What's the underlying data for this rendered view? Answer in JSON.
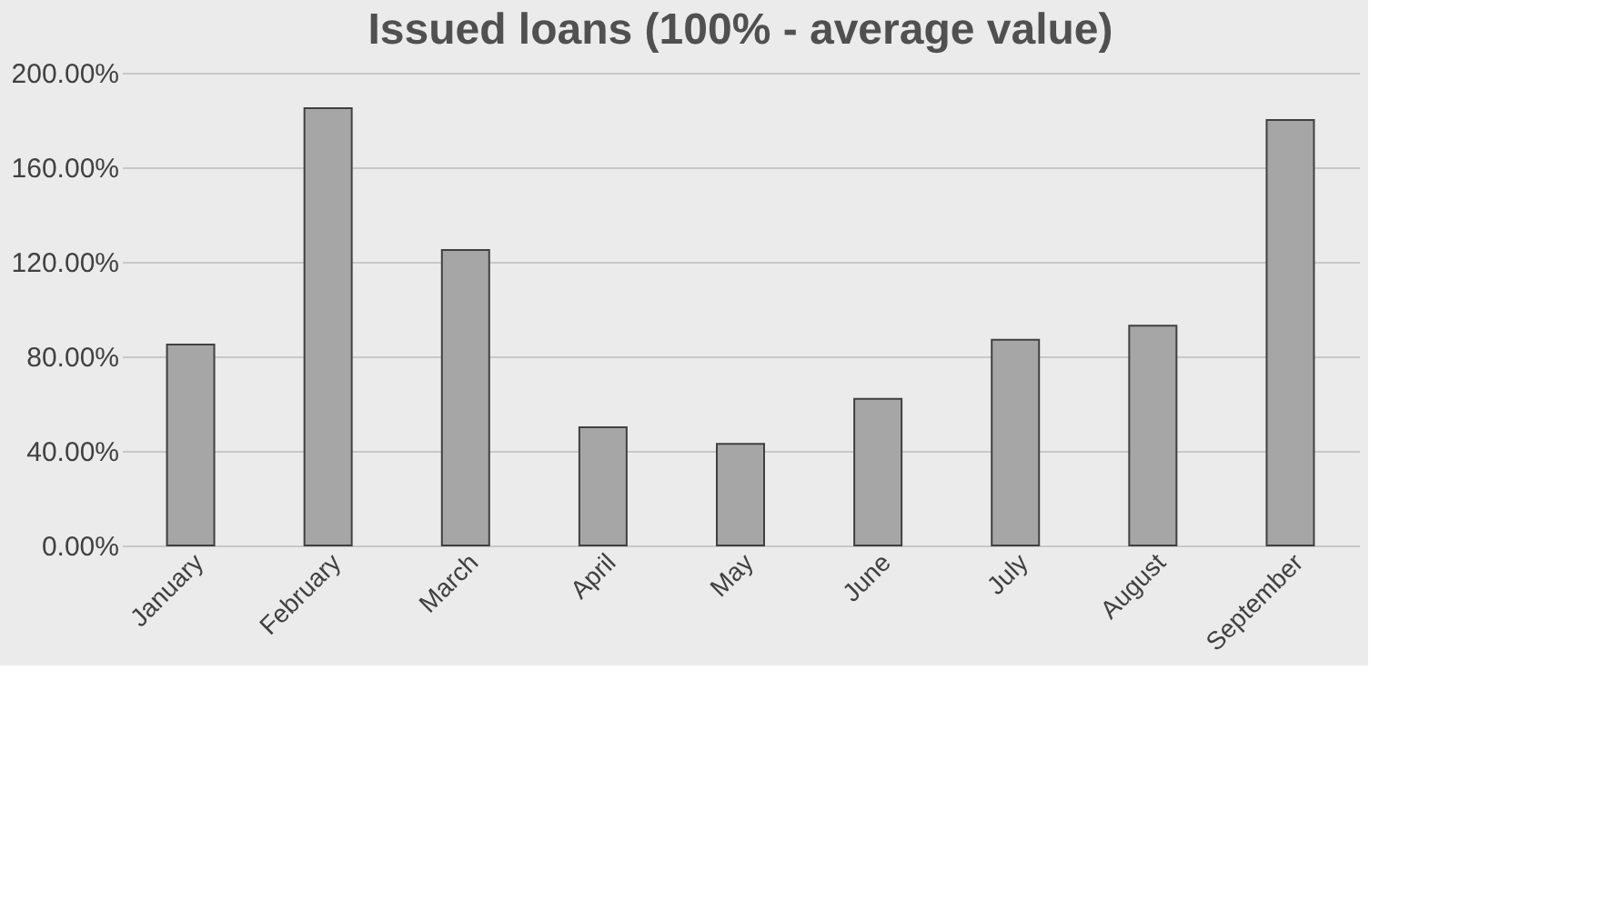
{
  "chart_data": {
    "type": "bar",
    "title": "Issued loans (100% - average value)",
    "categories": [
      "January",
      "February",
      "March",
      "April",
      "May",
      "June",
      "July",
      "August",
      "September"
    ],
    "values": [
      85,
      185,
      125,
      50,
      43,
      62,
      87,
      93,
      180
    ],
    "color": "#a6a6a6",
    "ylim": [
      0,
      200
    ],
    "yticks": [
      {
        "value": 0,
        "label": "0.00%"
      },
      {
        "value": 40,
        "label": "40.00%"
      },
      {
        "value": 80,
        "label": "80.00%"
      },
      {
        "value": 120,
        "label": "120.00%"
      },
      {
        "value": 160,
        "label": "160.00%"
      },
      {
        "value": 200,
        "label": "200.00%"
      }
    ],
    "grid": "y"
  }
}
